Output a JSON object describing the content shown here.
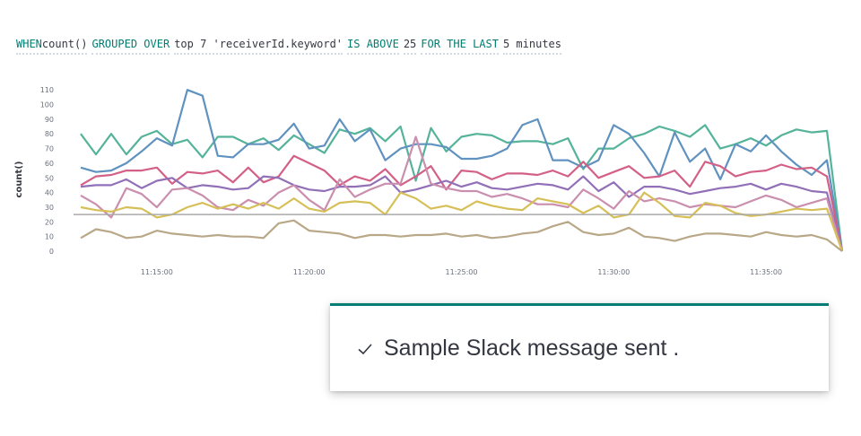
{
  "condition": {
    "when": "WHEN",
    "metric": "count()",
    "grouped_over": "GROUPED OVER",
    "top": "top 7 'receiverId.keyword'",
    "is_above": "IS ABOVE",
    "threshold": "25",
    "for_the_last": "FOR THE LAST",
    "window": "5 minutes"
  },
  "toast": {
    "icon": "check-icon",
    "message": "Sample Slack message sent ."
  },
  "colors": {
    "accent": "#017d73",
    "threshold_line": "#aaaaaa",
    "series": [
      "#54b399",
      "#6092c0",
      "#d36086",
      "#9170b8",
      "#ca8eae",
      "#d6bf57",
      "#b9a888"
    ]
  },
  "chart_data": {
    "type": "line",
    "ylabel": "count()",
    "y_ticks": [
      "0",
      "10",
      "20",
      "30",
      "40",
      "50",
      "60",
      "70",
      "80",
      "90",
      "100",
      "110"
    ],
    "ylim": [
      0,
      115
    ],
    "x_ticks": [
      "11:15:00",
      "11:20:00",
      "11:25:00",
      "11:30:00",
      "11:35:00"
    ],
    "x_tick_index": [
      5,
      15,
      25,
      35,
      45
    ],
    "xlim": [
      0,
      49
    ],
    "threshold": 25,
    "series": [
      {
        "values": [
          80,
          66,
          80,
          66,
          78,
          82,
          73,
          76,
          64,
          78,
          78,
          73,
          77,
          69,
          79,
          73,
          67,
          83,
          80,
          84,
          75,
          85,
          48,
          84,
          68,
          78,
          80,
          79,
          74,
          75,
          75,
          73,
          77,
          56,
          70,
          70,
          77,
          80,
          85,
          82,
          78,
          86,
          70,
          73,
          77,
          72,
          79,
          83,
          81,
          82,
          0
        ]
      },
      {
        "values": [
          57,
          54,
          55,
          60,
          68,
          77,
          72,
          110,
          106,
          65,
          64,
          73,
          73,
          76,
          87,
          70,
          72,
          90,
          75,
          83,
          62,
          70,
          73,
          73,
          71,
          63,
          63,
          65,
          70,
          86,
          90,
          62,
          62,
          57,
          62,
          86,
          80,
          67,
          51,
          81,
          61,
          70,
          49,
          73,
          68,
          79,
          68,
          59,
          52,
          62,
          0
        ]
      },
      {
        "values": [
          45,
          51,
          52,
          55,
          55,
          57,
          46,
          54,
          53,
          55,
          47,
          57,
          47,
          51,
          65,
          60,
          55,
          45,
          51,
          48,
          56,
          45,
          51,
          58,
          42,
          55,
          54,
          49,
          53,
          53,
          52,
          55,
          51,
          61,
          50,
          54,
          58,
          50,
          51,
          55,
          44,
          61,
          58,
          51,
          54,
          55,
          59,
          56,
          57,
          51,
          0
        ]
      },
      {
        "values": [
          44,
          45,
          45,
          49,
          43,
          48,
          50,
          43,
          45,
          44,
          42,
          43,
          51,
          50,
          45,
          42,
          41,
          44,
          44,
          45,
          51,
          40,
          42,
          45,
          48,
          44,
          47,
          43,
          42,
          44,
          46,
          45,
          42,
          51,
          41,
          47,
          37,
          44,
          44,
          42,
          39,
          41,
          43,
          44,
          46,
          42,
          46,
          44,
          41,
          40,
          0
        ]
      },
      {
        "values": [
          38,
          32,
          23,
          43,
          39,
          30,
          42,
          43,
          38,
          30,
          28,
          35,
          31,
          40,
          45,
          35,
          28,
          49,
          37,
          42,
          46,
          46,
          78,
          46,
          43,
          41,
          41,
          37,
          39,
          36,
          32,
          32,
          30,
          42,
          36,
          29,
          41,
          34,
          36,
          34,
          30,
          32,
          31,
          30,
          34,
          38,
          35,
          30,
          33,
          36,
          0
        ]
      },
      {
        "values": [
          30,
          28,
          27,
          30,
          29,
          23,
          25,
          30,
          33,
          29,
          32,
          29,
          33,
          29,
          36,
          29,
          27,
          33,
          34,
          33,
          25,
          40,
          36,
          29,
          31,
          28,
          34,
          31,
          29,
          28,
          36,
          34,
          32,
          26,
          31,
          23,
          25,
          40,
          33,
          24,
          23,
          33,
          31,
          26,
          24,
          25,
          27,
          29,
          28,
          29,
          0
        ]
      },
      {
        "values": [
          9,
          15,
          13,
          9,
          10,
          14,
          12,
          11,
          10,
          11,
          10,
          10,
          9,
          19,
          21,
          14,
          13,
          12,
          9,
          11,
          11,
          10,
          11,
          11,
          12,
          10,
          11,
          9,
          10,
          12,
          13,
          17,
          20,
          13,
          11,
          12,
          16,
          10,
          9,
          7,
          10,
          12,
          12,
          11,
          10,
          13,
          11,
          10,
          11,
          8,
          0
        ]
      }
    ]
  }
}
